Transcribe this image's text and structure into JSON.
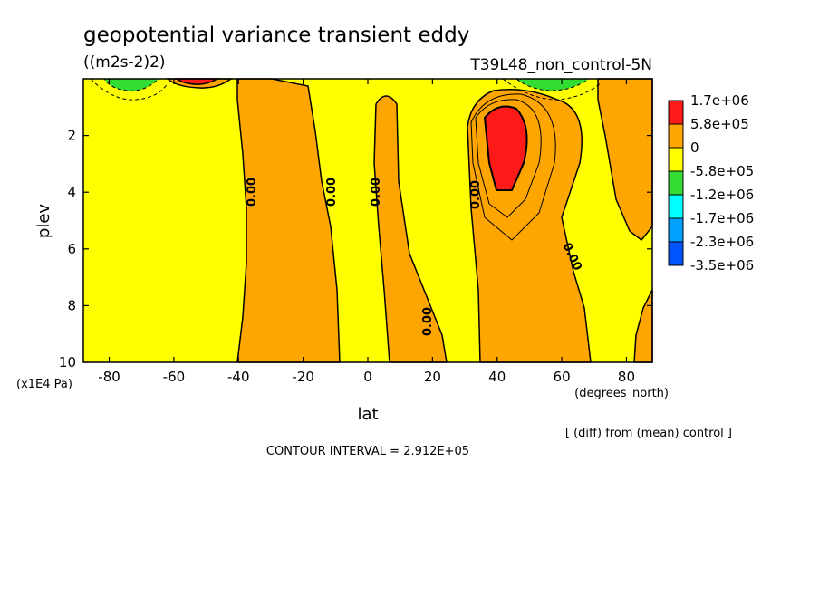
{
  "chart_data": {
    "type": "heatmap",
    "title": "geopotential variance transient eddy",
    "units": "((m2s-2)2)",
    "run_label": "T39L48_non_control-5N",
    "xlabel": "lat",
    "x_units": "(degrees_north)",
    "ylabel": "plev",
    "y_units": "(x1E4 Pa)",
    "xlim": [
      -88,
      88
    ],
    "ylim": [
      10,
      0
    ],
    "x_ticks": [
      -80,
      -60,
      -40,
      -20,
      0,
      20,
      40,
      60,
      80
    ],
    "y_ticks": [
      2,
      4,
      6,
      8,
      10
    ],
    "note": "[ (diff) from (mean) control ]",
    "contour_interval": "CONTOUR INTERVAL = 2.912E+05",
    "contour_labels": [
      "0.00",
      "0.00",
      "0.00",
      "0.00",
      "0.00",
      "0.00",
      "0.00"
    ],
    "colorbar": [
      {
        "label": "1.7e+06",
        "color": "#ff1a1a"
      },
      {
        "label": "5.8e+05",
        "color": "#ffa500"
      },
      {
        "label": "0",
        "color": "#ffff00"
      },
      {
        "label": "-5.8e+05",
        "color": "#33dd33"
      },
      {
        "label": "-1.2e+06",
        "color": "#00ffff"
      },
      {
        "label": "-1.7e+06",
        "color": "#00a0ff"
      },
      {
        "label": "-2.3e+06",
        "color": "#0055ff"
      },
      {
        "label": "-3.5e+06",
        "color": ""
      }
    ]
  }
}
